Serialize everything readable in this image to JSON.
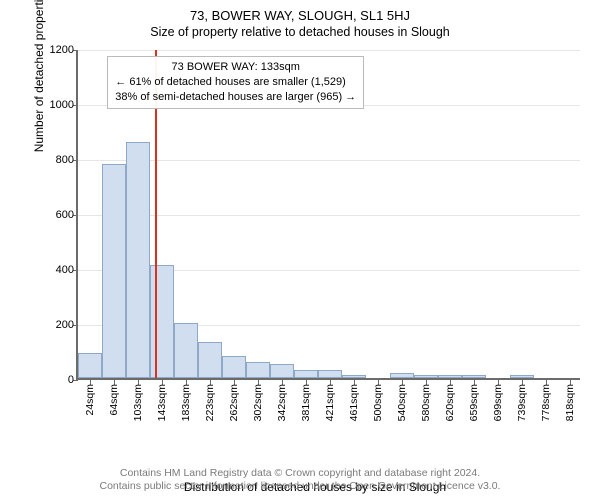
{
  "title": "73, BOWER WAY, SLOUGH, SL1 5HJ",
  "subtitle": "Size of property relative to detached houses in Slough",
  "ylabel": "Number of detached properties",
  "xlabel": "Distribution of detached houses by size in Slough",
  "chart": {
    "type": "histogram",
    "ylim": [
      0,
      1200
    ],
    "ytick_step": 200,
    "background_color": "#ffffff",
    "grid_color": "#e6e6e6",
    "axis_color": "#6b6b6b",
    "bar_fill": "#d0deef",
    "bar_border": "#8fa8c6",
    "bar_categories": [
      "24sqm",
      "64sqm",
      "103sqm",
      "143sqm",
      "183sqm",
      "223sqm",
      "262sqm",
      "302sqm",
      "342sqm",
      "381sqm",
      "421sqm",
      "461sqm",
      "500sqm",
      "540sqm",
      "580sqm",
      "620sqm",
      "659sqm",
      "699sqm",
      "739sqm",
      "778sqm",
      "818sqm"
    ],
    "bar_values": [
      90,
      780,
      860,
      410,
      200,
      130,
      80,
      60,
      50,
      30,
      30,
      10,
      0,
      20,
      10,
      10,
      10,
      0,
      10,
      0,
      0
    ],
    "reference_line": {
      "color": "#d9301f",
      "at_category_index": 2.72
    },
    "annotation": {
      "line1": "73 BOWER WAY: 133sqm",
      "line2": "← 61% of detached houses are smaller (1,529)",
      "line3": "38% of semi-detached houses are larger (965) →"
    },
    "title_fontsize": 13,
    "subtitle_fontsize": 12.5,
    "label_fontsize": 12,
    "tick_fontsize": 11
  },
  "footer": {
    "line1": "Contains HM Land Registry data © Crown copyright and database right 2024.",
    "line2": "Contains public sector information licensed under the Open Government Licence v3.0."
  }
}
